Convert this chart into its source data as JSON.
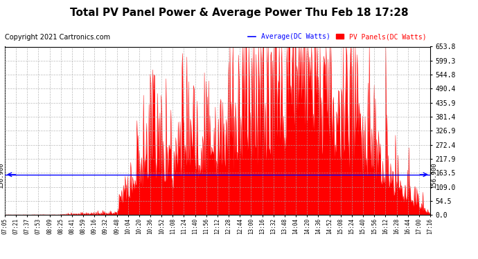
{
  "title": "Total PV Panel Power & Average Power Thu Feb 18 17:28",
  "copyright": "Copyright 2021 Cartronics.com",
  "legend_avg": "Average(DC Watts)",
  "legend_pv": "PV Panels(DC Watts)",
  "ymax": 653.8,
  "ymin": 0.0,
  "yticks": [
    0.0,
    54.5,
    109.0,
    163.5,
    217.9,
    272.4,
    326.9,
    381.4,
    435.9,
    490.4,
    544.8,
    599.3,
    653.8
  ],
  "hline_value": 156.9,
  "hline_label": "156.900",
  "bg_color": "#ffffff",
  "plot_bg_color": "#ffffff",
  "grid_color": "#aaaaaa",
  "pv_color": "#ff0000",
  "avg_color": "#0000ff",
  "title_fontsize": 11,
  "copyright_fontsize": 7,
  "xtick_fontsize": 5.5,
  "ytick_fontsize": 7,
  "xtick_labels": [
    "07:05",
    "07:21",
    "07:37",
    "07:53",
    "08:09",
    "08:25",
    "08:41",
    "08:59",
    "09:16",
    "09:32",
    "09:48",
    "10:04",
    "10:20",
    "10:36",
    "10:52",
    "11:08",
    "11:24",
    "11:40",
    "11:56",
    "12:12",
    "12:28",
    "12:44",
    "13:00",
    "13:16",
    "13:32",
    "13:48",
    "14:04",
    "14:20",
    "14:36",
    "14:52",
    "15:08",
    "15:24",
    "15:40",
    "15:56",
    "16:12",
    "16:28",
    "16:44",
    "17:00",
    "17:16"
  ],
  "n_points": 700
}
